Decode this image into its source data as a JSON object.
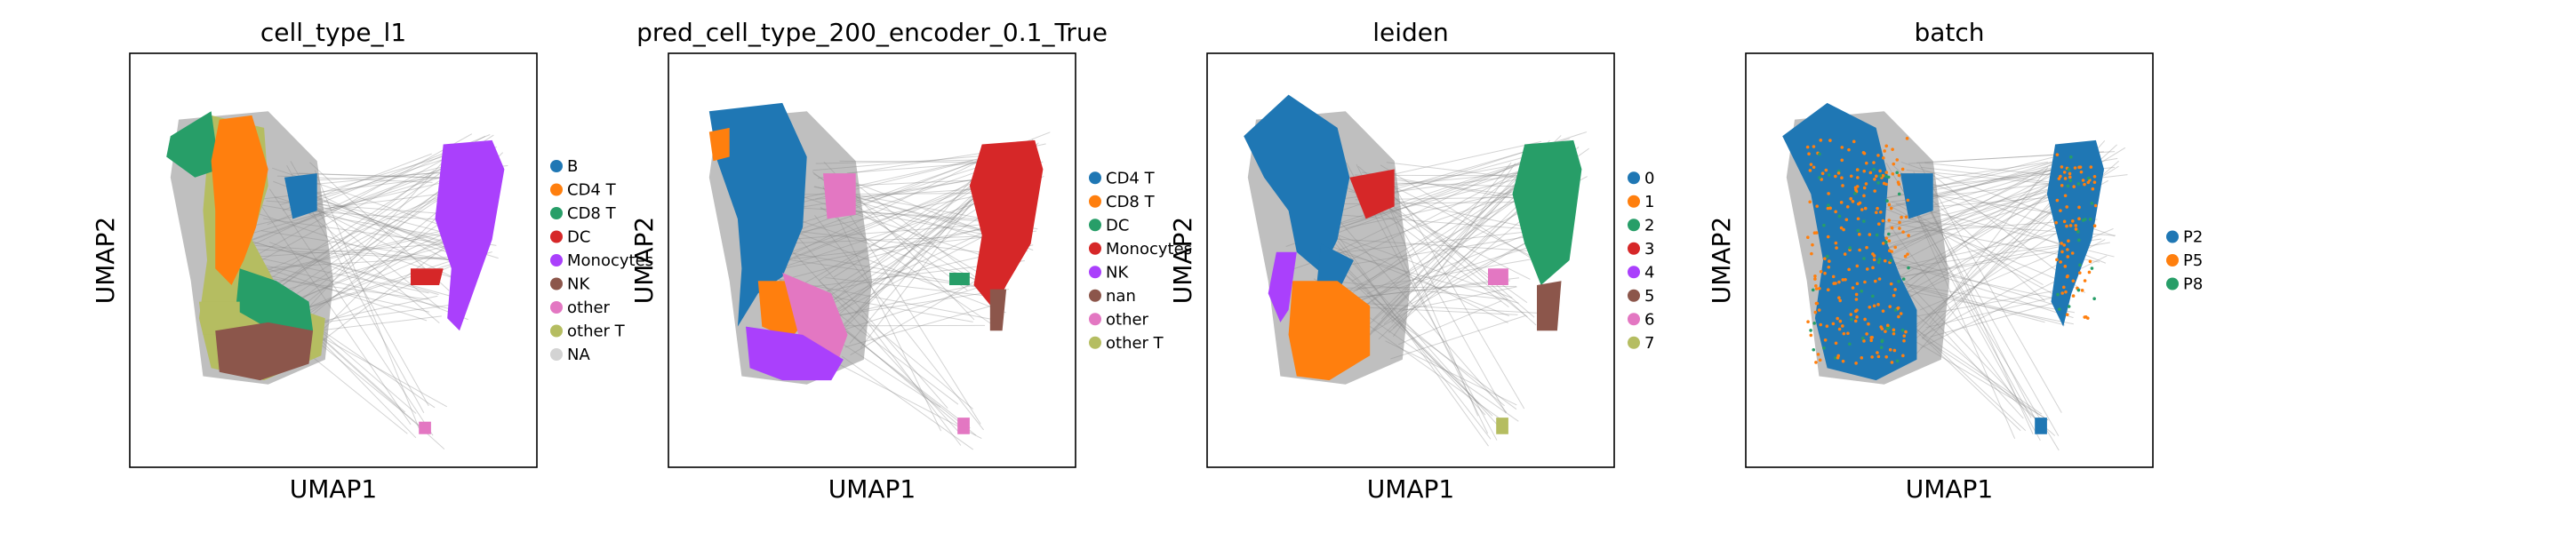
{
  "chart_data": [
    {
      "type": "scatter",
      "title": "cell_type_l1",
      "xlabel": "UMAP1",
      "ylabel": "UMAP2",
      "grid": false,
      "legend_placement": "right",
      "series": [
        {
          "name": "B",
          "color": "#1f77b4"
        },
        {
          "name": "CD4 T",
          "color": "#ff7f0e"
        },
        {
          "name": "CD8 T",
          "color": "#279e68"
        },
        {
          "name": "DC",
          "color": "#d62728"
        },
        {
          "name": "Monocytes",
          "color": "#aa40fc"
        },
        {
          "name": "NK",
          "color": "#8c564b"
        },
        {
          "name": "other",
          "color": "#e377c2"
        },
        {
          "name": "other T",
          "color": "#b5bd61"
        },
        {
          "name": "NA",
          "color": "#d3d3d3"
        }
      ]
    },
    {
      "type": "scatter",
      "title": "pred_cell_type_200_encoder_0.1_True",
      "xlabel": "UMAP1",
      "ylabel": "UMAP2",
      "grid": false,
      "legend_placement": "right",
      "series": [
        {
          "name": "CD4 T",
          "color": "#1f77b4"
        },
        {
          "name": "CD8 T",
          "color": "#ff7f0e"
        },
        {
          "name": "DC",
          "color": "#279e68"
        },
        {
          "name": "Monocytes",
          "color": "#d62728"
        },
        {
          "name": "NK",
          "color": "#aa40fc"
        },
        {
          "name": "nan",
          "color": "#8c564b"
        },
        {
          "name": "other",
          "color": "#e377c2"
        },
        {
          "name": "other T",
          "color": "#b5bd61"
        }
      ]
    },
    {
      "type": "scatter",
      "title": "leiden",
      "xlabel": "UMAP1",
      "ylabel": "UMAP2",
      "grid": false,
      "legend_placement": "right",
      "series": [
        {
          "name": "0",
          "color": "#1f77b4"
        },
        {
          "name": "1",
          "color": "#ff7f0e"
        },
        {
          "name": "2",
          "color": "#279e68"
        },
        {
          "name": "3",
          "color": "#d62728"
        },
        {
          "name": "4",
          "color": "#aa40fc"
        },
        {
          "name": "5",
          "color": "#8c564b"
        },
        {
          "name": "6",
          "color": "#e377c2"
        },
        {
          "name": "7",
          "color": "#b5bd61"
        }
      ]
    },
    {
      "type": "scatter",
      "title": "batch",
      "xlabel": "UMAP1",
      "ylabel": "UMAP2",
      "grid": false,
      "legend_placement": "right",
      "series": [
        {
          "name": "P2",
          "color": "#1f77b4"
        },
        {
          "name": "P5",
          "color": "#ff7f0e"
        },
        {
          "name": "P8",
          "color": "#279e68"
        }
      ]
    }
  ]
}
